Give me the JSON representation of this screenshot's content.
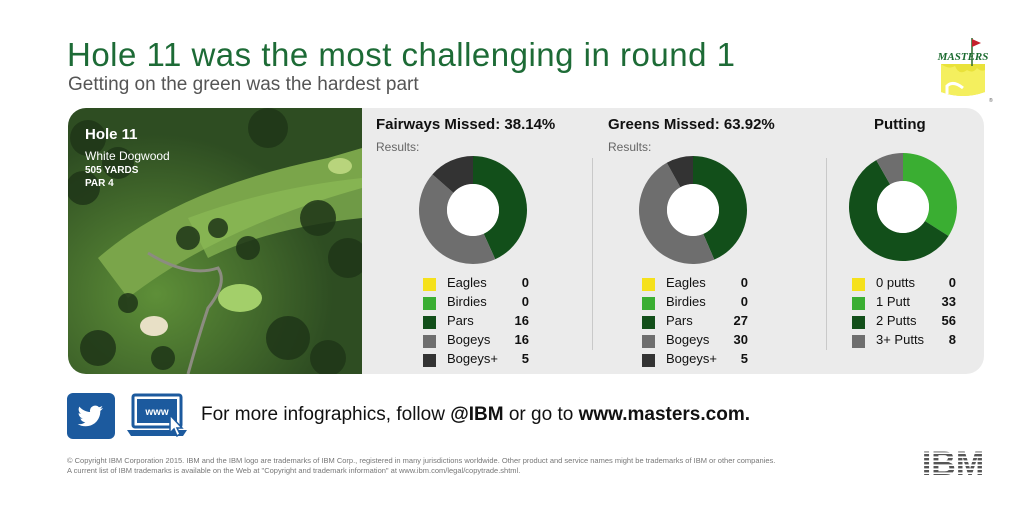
{
  "header": {
    "title": "Hole 11 was the most challenging in round 1",
    "subtitle": "Getting on the green was the hardest part"
  },
  "logo": {
    "text": "MASTERS"
  },
  "hole": {
    "name": "Hole 11",
    "nickname": "White Dogwood",
    "yards": "505 YARDS",
    "par": "PAR 4"
  },
  "colors": {
    "eagles": "#f5e11b",
    "birdies": "#3aae32",
    "pars": "#124f1a",
    "bogeys": "#6e6e6e",
    "bogeys_plus": "#333333",
    "title_green": "#1d6b36"
  },
  "chart_data": [
    {
      "type": "pie",
      "title": "Fairways Missed: 38.14%",
      "subtitle": "Results:",
      "categories": [
        "Eagles",
        "Birdies",
        "Pars",
        "Bogeys",
        "Bogeys+"
      ],
      "values": [
        0,
        0,
        16,
        16,
        5
      ]
    },
    {
      "type": "pie",
      "title": "Greens Missed: 63.92%",
      "subtitle": "Results:",
      "categories": [
        "Eagles",
        "Birdies",
        "Pars",
        "Bogeys",
        "Bogeys+"
      ],
      "values": [
        0,
        0,
        27,
        30,
        5
      ]
    },
    {
      "type": "pie",
      "title": "Putting",
      "subtitle": "",
      "categories": [
        "0 putts",
        "1 Putt",
        "2 Putts",
        "3+ Putts"
      ],
      "values": [
        0,
        33,
        56,
        8
      ]
    }
  ],
  "footer": {
    "follow_prefix": "For more infographics, follow ",
    "handle": "@IBM",
    "follow_mid": " or go to ",
    "site": "www.masters.com.",
    "www_label": "www",
    "copyright_lead": "© Copyright IBM Corporation 2015.",
    "copyright_line1": " IBM and the IBM logo are trademarks of IBM Corp., registered in many jurisdictions worldwide. Other product and service names might be trademarks of IBM or other companies.",
    "copyright_line2": "A current list of IBM trademarks is available on the Web at \"Copyright and trademark information\" at www.ibm.com/legal/copytrade.shtml.",
    "ibm_logo": "IBM"
  }
}
